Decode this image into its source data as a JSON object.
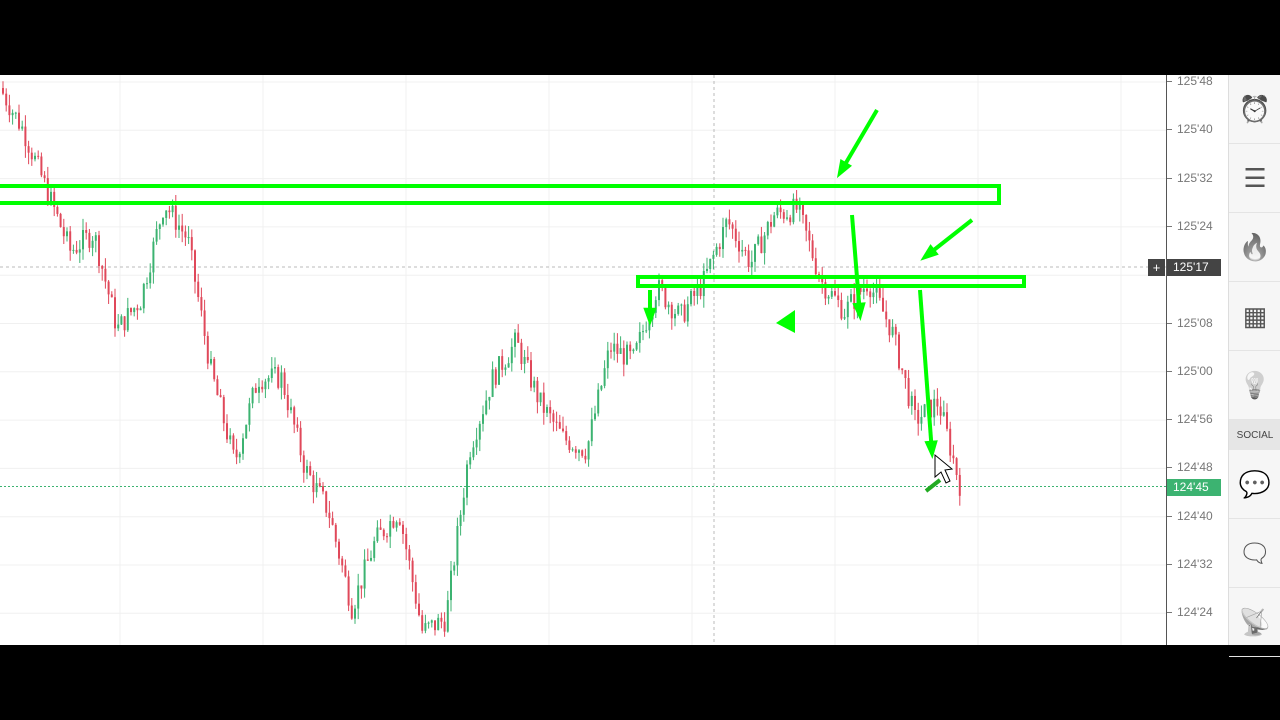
{
  "price_axis": {
    "ticks": [
      "125'48",
      "125'40",
      "125'32",
      "125'24",
      "125'08",
      "125'00",
      "124'56",
      "124'48",
      "124'40",
      "124'32",
      "124'24"
    ],
    "crosshair_label": "125'17",
    "current_price_label": "124'45",
    "current_price_color": "#3cb371"
  },
  "chart_data": {
    "type": "candlestick",
    "y_ticks": [
      "125'48",
      "125'40",
      "125'32",
      "125'24",
      "125'16",
      "125'08",
      "125'00",
      "124'56",
      "124'48",
      "124'40",
      "124'32",
      "124'24"
    ],
    "price_path": [
      "125'47",
      "125'40",
      "125'30",
      "125'20",
      "125'23",
      "125'07",
      "125'12",
      "125'28",
      "125'22",
      "125'00",
      "124'49",
      "124'63",
      "124'63",
      "124'48",
      "124'41",
      "124'25",
      "124'36",
      "124'41",
      "124'21",
      "124'23",
      "124'51",
      "124'63",
      "125'05",
      "124'59",
      "124'53",
      "124'51",
      "125'04",
      "125'02",
      "125'14",
      "125'09",
      "125'15",
      "125'25",
      "125'18",
      "125'26",
      "125'27",
      "125'15",
      "125'10",
      "125'15",
      "125'07",
      "124'56",
      "124'59",
      "124'44"
    ],
    "up_color": "#3cb371",
    "down_color": "#e0485a",
    "annotation_color": "#00ff00"
  },
  "sidebar": {
    "items": [
      {
        "icon": "alarm-clock-icon",
        "glyph": "⏰"
      },
      {
        "icon": "list-icon",
        "glyph": "☰"
      },
      {
        "icon": "fire-icon",
        "glyph": "🔥"
      },
      {
        "icon": "calendar-icon",
        "glyph": "▦"
      },
      {
        "icon": "lightbulb-icon",
        "glyph": "💡"
      }
    ],
    "social_label": "SOCIAL",
    "social_items": [
      {
        "icon": "chat-icon",
        "glyph": "💬"
      },
      {
        "icon": "chat-document-icon",
        "glyph": "🗨"
      },
      {
        "icon": "broadcast-icon",
        "glyph": "📡"
      }
    ]
  }
}
